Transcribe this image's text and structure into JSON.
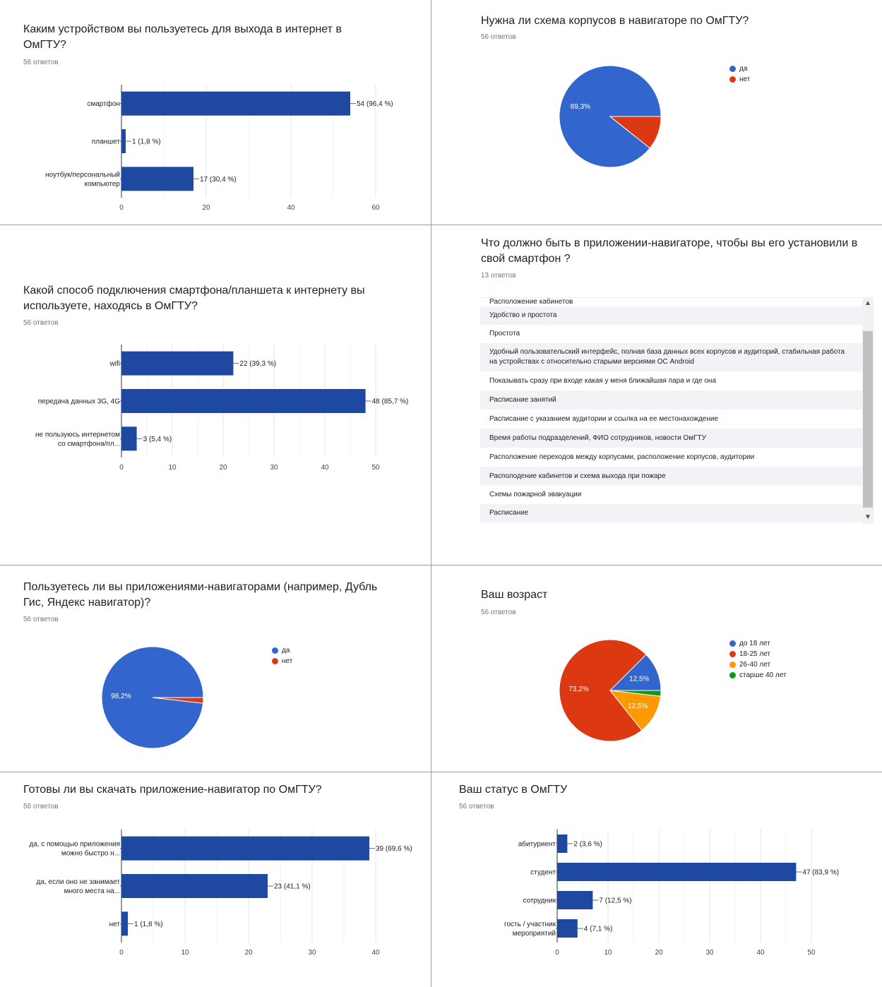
{
  "colors": {
    "bar": "#1f48a0",
    "blue": "#3366cc",
    "red": "#dc3912",
    "orange": "#ff9900",
    "green": "#109618",
    "grid": "#e6e6e6",
    "axis": "#333333"
  },
  "q1": {
    "title": "Каким устройством вы пользуетесь для выхода в интернет в ОмГТУ?",
    "count": "56 ответов",
    "chart_data": {
      "type": "bar",
      "orientation": "horizontal",
      "categories": [
        [
          "смартфон"
        ],
        [
          "планшет"
        ],
        [
          "ноутбук/персональный",
          "компьютер"
        ]
      ],
      "values": [
        54,
        1,
        17
      ],
      "labels": [
        "54 (96,4 %)",
        "1 (1,8 %)",
        "17 (30,4 %)"
      ],
      "xlim": [
        0,
        60
      ],
      "ticks": [
        0,
        20,
        40,
        60
      ],
      "grid": true
    }
  },
  "q2": {
    "title": "Нужна ли схема корпусов в навигаторе по ОмГТУ?",
    "count": "56 ответов",
    "legend": [
      {
        "label": "да",
        "color": "#3366cc"
      },
      {
        "label": "нет",
        "color": "#dc3912"
      }
    ],
    "chart_data": {
      "type": "pie",
      "slices": [
        {
          "name": "да",
          "value": 89.3,
          "color": "#3366cc",
          "label": "89,3%"
        },
        {
          "name": "нет",
          "value": 10.7,
          "color": "#dc3912",
          "label": ""
        }
      ]
    }
  },
  "q3": {
    "title": "Какой способ подключения смартфона/планшета к интернету вы используете, находясь в ОмГТУ?",
    "count": "56 ответов",
    "chart_data": {
      "type": "bar",
      "orientation": "horizontal",
      "categories": [
        [
          "wifi"
        ],
        [
          "передача данных 3G, 4G"
        ],
        [
          "не пользуюсь интернетом",
          "со смартфона/пл..."
        ]
      ],
      "values": [
        22,
        48,
        3
      ],
      "labels": [
        "22 (39,3 %)",
        "48 (85,7 %)",
        "3 (5,4 %)"
      ],
      "xlim": [
        0,
        50
      ],
      "ticks": [
        0,
        10,
        20,
        30,
        40,
        50
      ],
      "grid": true
    }
  },
  "q4": {
    "title": "Что должно быть в приложении-навигаторе, чтобы вы его установили в свой смартфон ?",
    "count": "13 ответов",
    "rows": [
      "Расположение кабинетов",
      "Удобство и простота",
      "Простота",
      "Удобный пользовательский интерфейс, полная база данных всех корпусов и аудиторий, стабильная работа на устройствах с относительно старыми версиями ОС Android",
      "Показывать сразу при входе какая у меня ближайшая пара и где она",
      "Расписание занятий",
      "Расписание с указанием аудитории и ссылка на ее местонахождение",
      "Время работы подразделений, ФИО сотрудников, новости ОмГТУ",
      "Расположение переходов между корпусами, расположение корпусов, аудитории",
      "Располодение кабинетов и схема выхода при пожаре",
      "Схемы пожарной эвакуации",
      "Расписание"
    ],
    "scroll_up_icon": "▲",
    "scroll_down_icon": "▼"
  },
  "q5": {
    "title": "Пользуетесь ли вы приложениями-навигаторами (например, Дубль Гис, Яндекс навигатор)?",
    "count": "56 ответов",
    "legend": [
      {
        "label": "да",
        "color": "#3366cc"
      },
      {
        "label": "нет",
        "color": "#dc3912"
      }
    ],
    "chart_data": {
      "type": "pie",
      "slices": [
        {
          "name": "да",
          "value": 98.2,
          "color": "#3366cc",
          "label": "98,2%"
        },
        {
          "name": "нет",
          "value": 1.8,
          "color": "#dc3912",
          "label": ""
        }
      ]
    }
  },
  "q6": {
    "title": "Ваш возраст",
    "count": "56 ответов",
    "legend": [
      {
        "label": "до 18 лет",
        "color": "#3366cc"
      },
      {
        "label": "18-25 лет",
        "color": "#dc3912"
      },
      {
        "label": "26-40 лет",
        "color": "#ff9900"
      },
      {
        "label": "старше 40 лет",
        "color": "#109618"
      }
    ],
    "chart_data": {
      "type": "pie",
      "slices": [
        {
          "name": "до 18 лет",
          "value": 12.5,
          "color": "#3366cc",
          "label": "12,5%"
        },
        {
          "name": "18-25 лет",
          "value": 73.2,
          "color": "#dc3912",
          "label": "73,2%"
        },
        {
          "name": "26-40 лет",
          "value": 12.5,
          "color": "#ff9900",
          "label": "12,5%"
        },
        {
          "name": "старше 40 лет",
          "value": 1.8,
          "color": "#109618",
          "label": ""
        }
      ]
    }
  },
  "q7": {
    "title": "Готовы ли вы скачать приложение-навигатор по ОмГТУ?",
    "count": "56 ответов",
    "chart_data": {
      "type": "bar",
      "orientation": "horizontal",
      "categories": [
        [
          "да, с помощью приложения",
          "можно быстро н..."
        ],
        [
          "да, если оно не занимает",
          "много места на..."
        ],
        [
          "нет"
        ]
      ],
      "values": [
        39,
        23,
        1
      ],
      "labels": [
        "39 (69,6 %)",
        "23 (41,1 %)",
        "1 (1,8 %)"
      ],
      "xlim": [
        0,
        40
      ],
      "ticks": [
        0,
        10,
        20,
        30,
        40
      ],
      "grid": true
    }
  },
  "q8": {
    "title": "Ваш статус в ОмГТУ",
    "count": "56 ответов",
    "chart_data": {
      "type": "bar",
      "orientation": "horizontal",
      "categories": [
        [
          "абитуриент"
        ],
        [
          "студент"
        ],
        [
          "сотрудник"
        ],
        [
          "гость / участник",
          "мероприятий"
        ]
      ],
      "values": [
        2,
        47,
        7,
        4
      ],
      "labels": [
        "2 (3,6 %)",
        "47 (83,9 %)",
        "7 (12,5 %)",
        "4 (7,1 %)"
      ],
      "xlim": [
        0,
        50
      ],
      "ticks": [
        0,
        10,
        20,
        30,
        40,
        50
      ],
      "grid": true
    }
  }
}
